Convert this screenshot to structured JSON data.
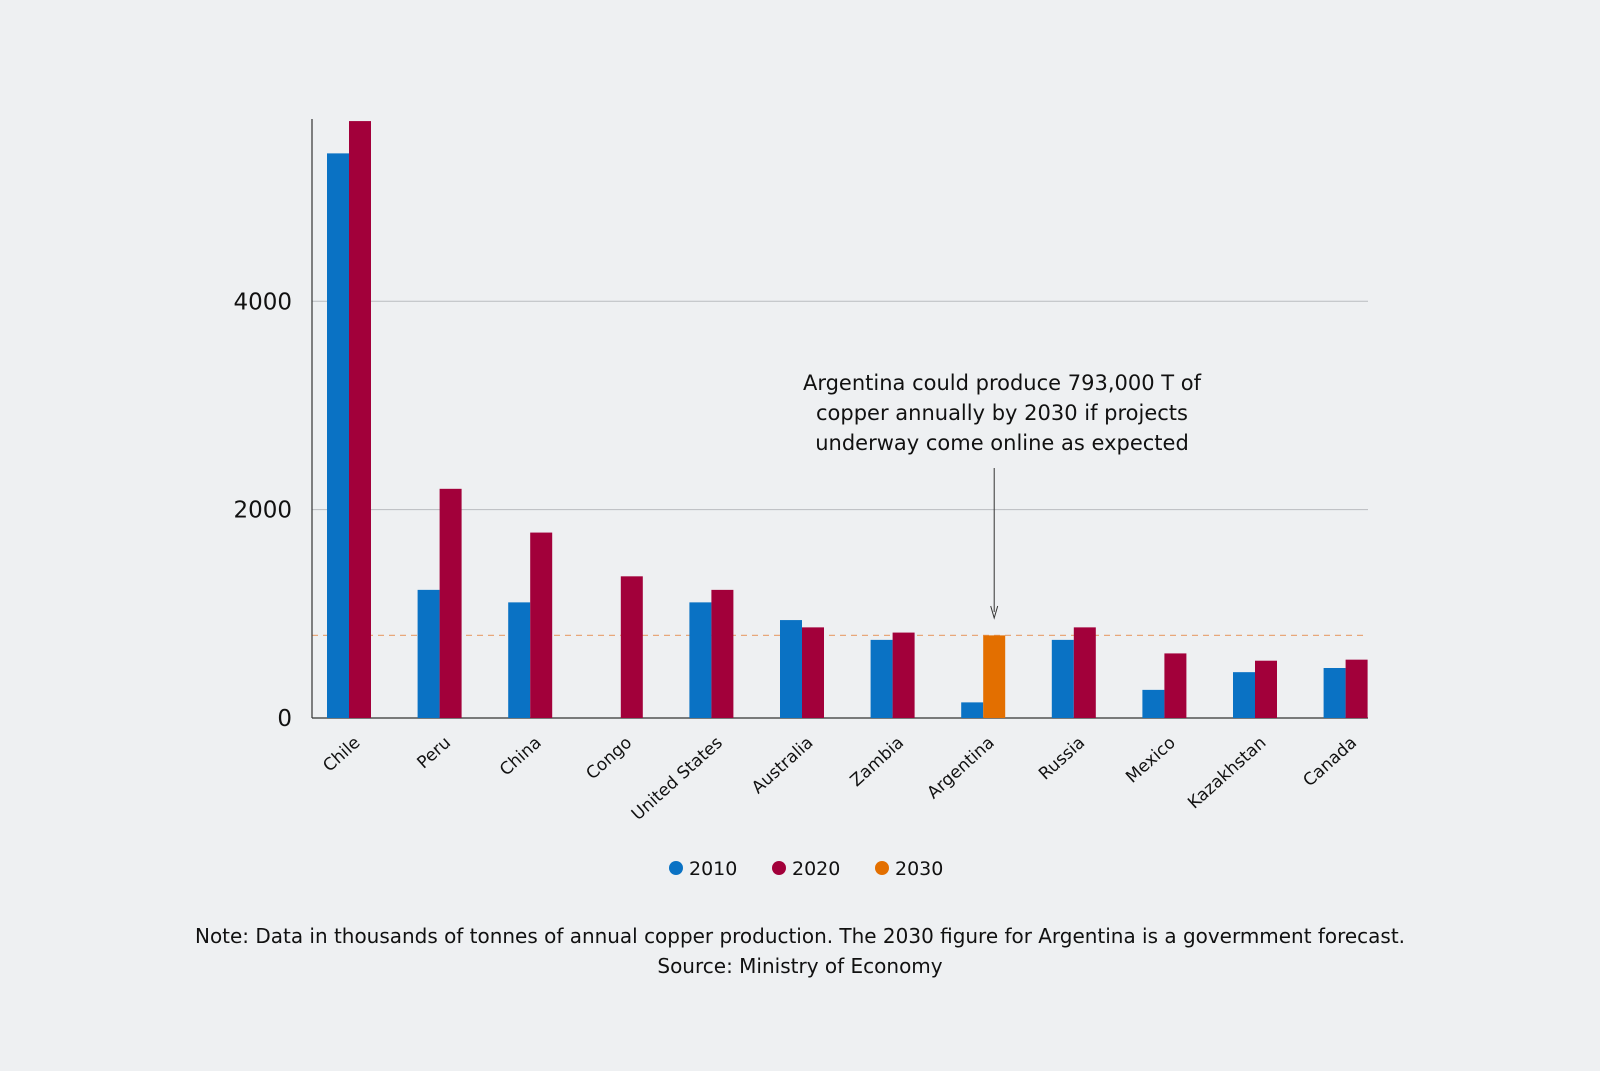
{
  "chart_data": {
    "type": "bar",
    "title": "",
    "xlabel": "",
    "ylabel": "",
    "ylim": [
      0,
      5750
    ],
    "yticks": [
      0,
      2000,
      4000
    ],
    "categories": [
      "Chile",
      "Peru",
      "China",
      "Congo",
      "United States",
      "Australia",
      "Zambia",
      "Argentina",
      "Russia",
      "Mexico",
      "Kazakhstan",
      "Canada"
    ],
    "series": [
      {
        "name": "2010",
        "color": "#0a72c4",
        "values": [
          5420,
          1230,
          1110,
          null,
          1110,
          940,
          750,
          150,
          750,
          270,
          440,
          480
        ]
      },
      {
        "name": "2020",
        "color": "#a2003a",
        "values": [
          5730,
          2200,
          1780,
          1360,
          1230,
          870,
          820,
          null,
          870,
          620,
          550,
          560
        ]
      },
      {
        "name": "2030",
        "color": "#e36f00",
        "values": [
          null,
          null,
          null,
          null,
          null,
          null,
          null,
          793,
          null,
          null,
          null,
          null
        ]
      }
    ],
    "reference_line": {
      "value": 793,
      "color": "#e8a77a"
    },
    "grid": true,
    "legend_position": "bottom-center",
    "annotation": {
      "lines": [
        "Argentina could produce 793,000 T of",
        "copper annually by 2030 if projects",
        "underway come online as expected"
      ],
      "target_category": "Argentina"
    },
    "note": {
      "lines": [
        "Note: Data in thousands of tonnes of annual copper production. The 2030 figure for Argentina is a govermment forecast.",
        "Source: Ministry of Economy"
      ]
    }
  }
}
